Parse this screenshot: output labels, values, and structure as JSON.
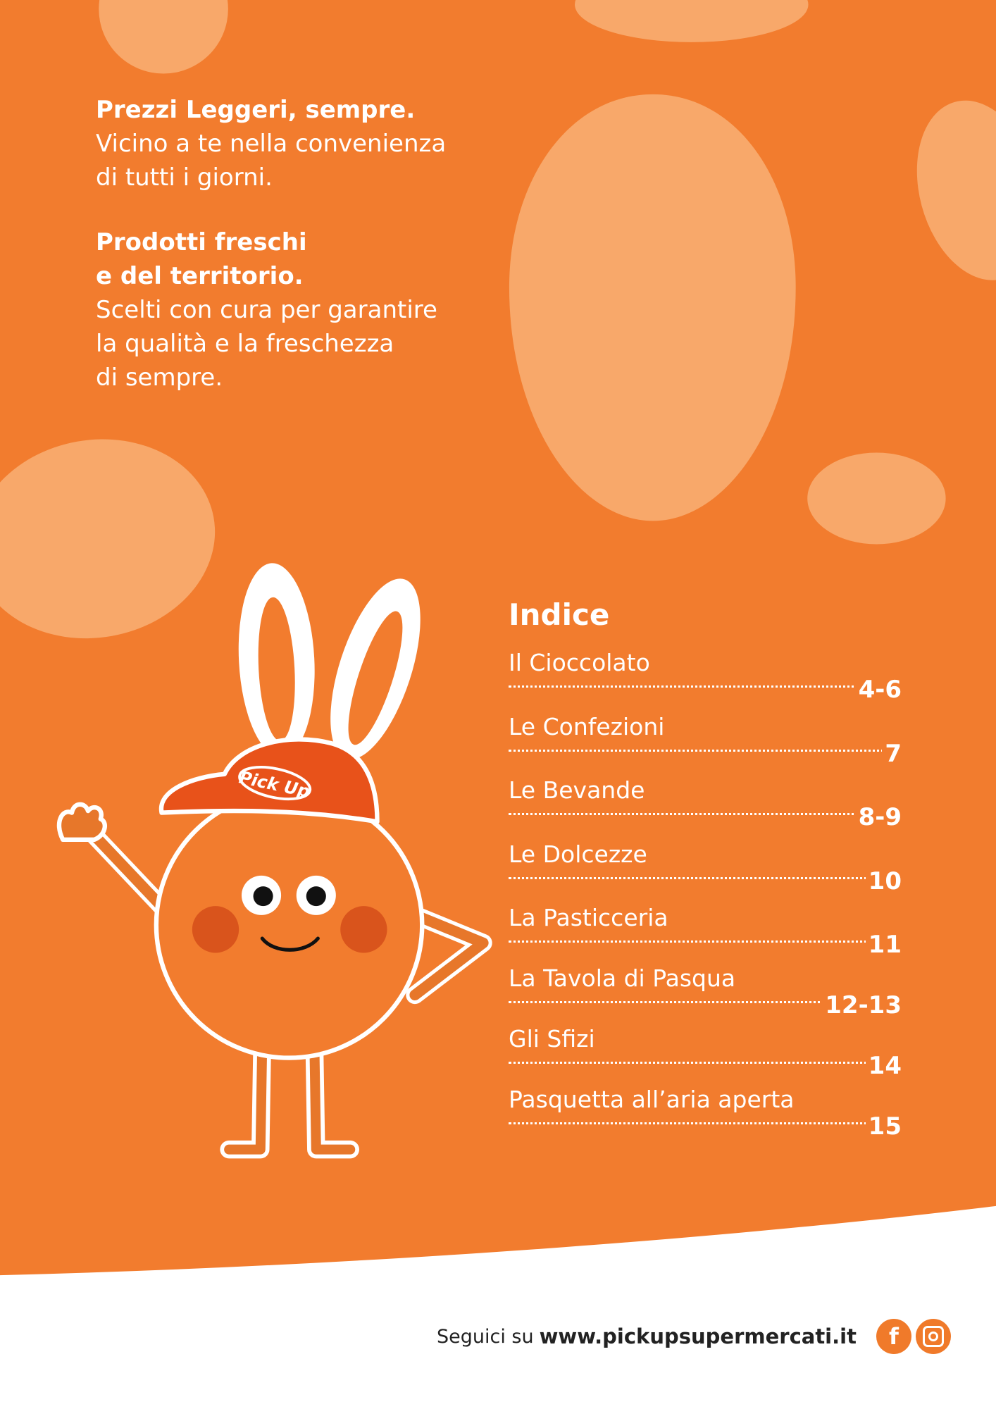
{
  "intro": {
    "block1_title": "Prezzi Leggeri, sempre.",
    "block1_lines": [
      "Vicino a te nella convenienza",
      "di tutti i giorni."
    ],
    "block2_title_lines": [
      "Prodotti freschi",
      "e del territorio."
    ],
    "block2_lines": [
      "Scelti con cura per garantire",
      "la qualità e la freschezza",
      "di sempre."
    ]
  },
  "mascot": {
    "cap_logo": "Pick Up"
  },
  "index": {
    "title": "Indice",
    "items": [
      {
        "label": "Il Cioccolato",
        "pages": "4-6"
      },
      {
        "label": "Le Confezioni",
        "pages": "7"
      },
      {
        "label": "Le Bevande",
        "pages": "8-9"
      },
      {
        "label": "Le Dolcezze",
        "pages": "10"
      },
      {
        "label": "La Pasticceria",
        "pages": "11"
      },
      {
        "label": "La Tavola di Pasqua",
        "pages": "12-13"
      },
      {
        "label": "Gli Sfizi",
        "pages": "14"
      },
      {
        "label": "Pasquetta all’aria aperta",
        "pages": "15"
      }
    ]
  },
  "footer": {
    "follow_text": "Seguici su",
    "url": "www.pickupsupermercati.it",
    "social_icons": [
      "facebook-icon",
      "instagram-icon"
    ],
    "facebook_glyph": "f"
  },
  "colors": {
    "background": "#f27c2e",
    "egg": "#f8a86a",
    "cap": "#e8521a",
    "cheek": "#d9541c",
    "footer_bg": "#ffffff"
  }
}
